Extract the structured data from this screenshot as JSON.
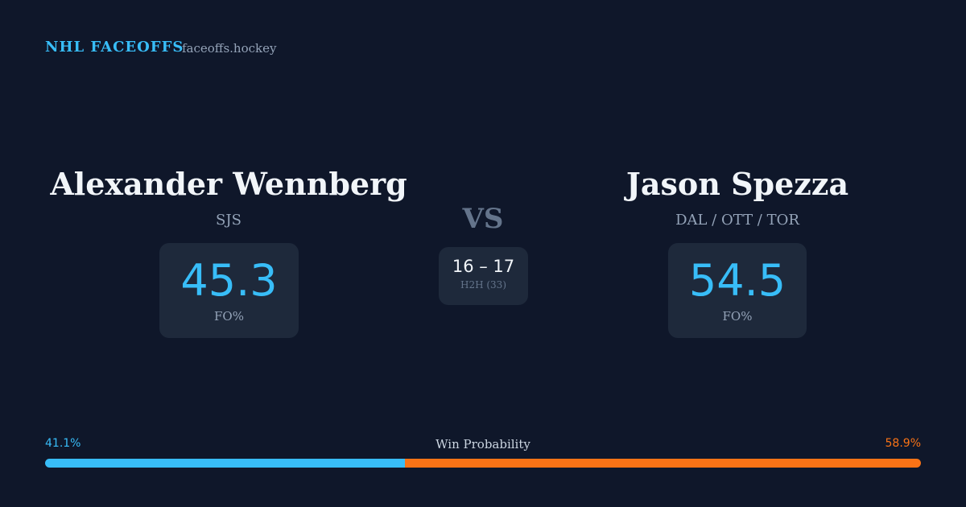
{
  "header": {
    "title": "NHL FACEOFFS",
    "site": "faceoffs.hockey"
  },
  "left_player": {
    "name": "Alexander Wennberg",
    "team": "SJS",
    "stat": "45.3",
    "stat_label": "FO%"
  },
  "versus": "VS",
  "head_to_head": {
    "score": "16 – 17",
    "label": "H2H (33)"
  },
  "right_player": {
    "name": "Jason Spezza",
    "team": "DAL / OTT / TOR",
    "stat": "54.5",
    "stat_label": "FO%"
  },
  "win_probability": {
    "title": "Win Probability",
    "left": {
      "value": 41.1,
      "label": "41.1%",
      "color": "#38bdf8"
    },
    "right": {
      "value": 58.9,
      "label": "58.9%",
      "color": "#f97316"
    }
  }
}
